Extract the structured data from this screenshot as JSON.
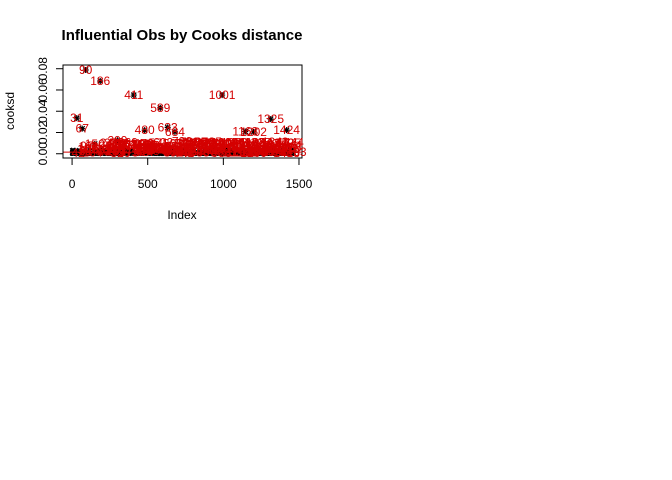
{
  "chart_data": {
    "type": "scatter",
    "title": "Influential Obs by Cooks distance",
    "xlabel": "Index",
    "ylabel": "cooksd",
    "xlim": [
      -60,
      1520
    ],
    "ylim": [
      -0.004,
      0.0835
    ],
    "xticks": [
      0,
      500,
      1000,
      1500
    ],
    "xtick_labels": [
      "0",
      "500",
      "1000",
      "1500"
    ],
    "yticks": [
      0,
      0.02,
      0.04,
      0.06,
      0.08
    ],
    "ytick_labels": [
      "0.00",
      "0.02",
      "0.04",
      "0.06",
      "0.08"
    ],
    "colors": {
      "points": "#000000",
      "labels": "#d40000",
      "cutoff_line": "#d40000"
    },
    "cutoff": 0.0015,
    "influential_points": [
      {
        "x": 31,
        "y": 0.0335,
        "label": "31"
      },
      {
        "x": 67,
        "y": 0.0236,
        "label": "67"
      },
      {
        "x": 90,
        "y": 0.0788,
        "label": "90"
      },
      {
        "x": 150,
        "y": 0.0092,
        "label": "150"
      },
      {
        "x": 186,
        "y": 0.0685,
        "label": "186"
      },
      {
        "x": 300,
        "y": 0.0127,
        "label": "299"
      },
      {
        "x": 408,
        "y": 0.0552,
        "label": "411"
      },
      {
        "x": 480,
        "y": 0.0222,
        "label": "480"
      },
      {
        "x": 583,
        "y": 0.0432,
        "label": "589"
      },
      {
        "x": 632,
        "y": 0.0248,
        "label": "633"
      },
      {
        "x": 680,
        "y": 0.0206,
        "label": "684"
      },
      {
        "x": 992,
        "y": 0.0552,
        "label": "1001"
      },
      {
        "x": 1145,
        "y": 0.0209,
        "label": "1163"
      },
      {
        "x": 1200,
        "y": 0.0205,
        "label": "1202"
      },
      {
        "x": 1313,
        "y": 0.0326,
        "label": "1325"
      },
      {
        "x": 1418,
        "y": 0.0222,
        "label": "1424"
      },
      {
        "x": 1462,
        "y": 0.0015,
        "label": "1463"
      },
      {
        "x": 40,
        "y": 0.0007,
        "label": "42"
      }
    ],
    "low_points_range": {
      "x": [
        0,
        1460
      ],
      "y": [
        0,
        0.0042
      ]
    }
  }
}
